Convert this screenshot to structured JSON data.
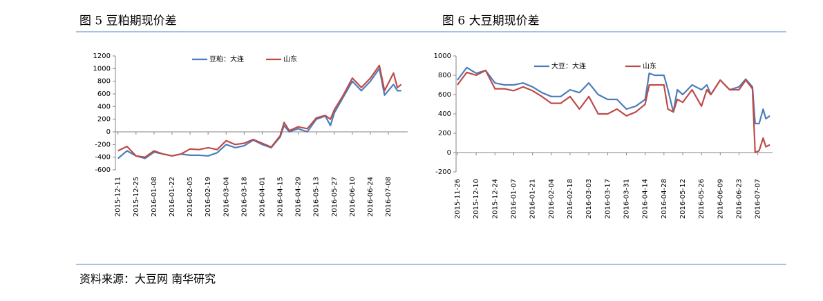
{
  "header": {
    "left": "图 5  豆粕期现价差",
    "right": "图 6  大豆期现价差"
  },
  "source": "资料来源：大豆网  南华研究",
  "chart_data": [
    {
      "type": "line",
      "x": [
        "2015-12-11",
        "2015-12-18",
        "2015-12-25",
        "2016-01-01",
        "2016-01-08",
        "2016-01-15",
        "2016-01-22",
        "2016-01-29",
        "2016-02-05",
        "2016-02-12",
        "2016-02-19",
        "2016-02-26",
        "2016-03-04",
        "2016-03-11",
        "2016-03-18",
        "2016-03-25",
        "2016-04-01",
        "2016-04-08",
        "2016-04-15",
        "2016-04-18",
        "2016-04-22",
        "2016-04-29",
        "2016-05-06",
        "2016-05-13",
        "2016-05-20",
        "2016-05-24",
        "2016-05-27",
        "2016-06-03",
        "2016-06-10",
        "2016-06-17",
        "2016-06-24",
        "2016-07-01",
        "2016-07-05",
        "2016-07-12",
        "2016-07-15",
        "2016-07-18"
      ],
      "series": [
        {
          "name": "豆粕：大连",
          "color": "#4a7ebb",
          "values": [
            -420,
            -300,
            -380,
            -420,
            -320,
            -350,
            -380,
            -350,
            -370,
            -370,
            -380,
            -330,
            -200,
            -250,
            -220,
            -130,
            -200,
            -250,
            -80,
            100,
            0,
            50,
            0,
            200,
            250,
            100,
            300,
            550,
            800,
            650,
            800,
            1000,
            580,
            750,
            650,
            650
          ]
        },
        {
          "name": "山东",
          "color": "#be4b48",
          "values": [
            -300,
            -230,
            -380,
            -400,
            -300,
            -350,
            -380,
            -350,
            -270,
            -280,
            -250,
            -280,
            -140,
            -200,
            -180,
            -120,
            -180,
            -240,
            -60,
            150,
            20,
            80,
            50,
            220,
            260,
            200,
            350,
            580,
            850,
            700,
            850,
            1050,
            650,
            930,
            700,
            750
          ]
        }
      ],
      "xlim": [
        "2015-12-09",
        "2016-07-23"
      ],
      "xticks": [
        "2015-12-11",
        "2015-12-25",
        "2016-01-08",
        "2016-01-22",
        "2016-02-05",
        "2016-02-19",
        "2016-03-04",
        "2016-03-18",
        "2016-04-01",
        "2016-04-15",
        "2016-04-29",
        "2016-05-13",
        "2016-05-27",
        "2016-06-10",
        "2016-06-24",
        "2016-07-08"
      ],
      "ylim": [
        -600,
        1200
      ],
      "yticks": [
        -600,
        -400,
        -200,
        0,
        200,
        400,
        600,
        800,
        1000,
        1200
      ],
      "legend": "top"
    },
    {
      "type": "line",
      "x": [
        "2015-11-26",
        "2015-12-03",
        "2015-12-10",
        "2015-12-17",
        "2015-12-24",
        "2015-12-31",
        "2016-01-07",
        "2016-01-14",
        "2016-01-21",
        "2016-01-28",
        "2016-02-04",
        "2016-02-11",
        "2016-02-18",
        "2016-02-25",
        "2016-03-03",
        "2016-03-10",
        "2016-03-17",
        "2016-03-24",
        "2016-03-31",
        "2016-04-07",
        "2016-04-14",
        "2016-04-17",
        "2016-04-21",
        "2016-04-28",
        "2016-05-01",
        "2016-05-05",
        "2016-05-08",
        "2016-05-12",
        "2016-05-19",
        "2016-05-26",
        "2016-05-30",
        "2016-06-02",
        "2016-06-09",
        "2016-06-16",
        "2016-06-23",
        "2016-06-28",
        "2016-07-03",
        "2016-07-05",
        "2016-07-08",
        "2016-07-11",
        "2016-07-13",
        "2016-07-16"
      ],
      "series": [
        {
          "name": "大豆：大连",
          "color": "#4a7ebb",
          "values": [
            750,
            880,
            820,
            850,
            720,
            700,
            700,
            720,
            680,
            620,
            580,
            580,
            650,
            620,
            720,
            600,
            550,
            550,
            450,
            480,
            550,
            820,
            800,
            800,
            650,
            420,
            650,
            600,
            700,
            650,
            700,
            600,
            750,
            650,
            680,
            760,
            680,
            300,
            300,
            450,
            350,
            380
          ]
        },
        {
          "name": "山东",
          "color": "#be4b48",
          "values": [
            700,
            830,
            800,
            850,
            660,
            660,
            640,
            680,
            640,
            580,
            510,
            510,
            580,
            450,
            580,
            400,
            400,
            450,
            380,
            420,
            500,
            700,
            700,
            700,
            450,
            420,
            550,
            520,
            650,
            480,
            650,
            600,
            750,
            650,
            650,
            750,
            660,
            0,
            20,
            150,
            60,
            80
          ]
        }
      ],
      "xlim": [
        "2015-11-25",
        "2016-07-18"
      ],
      "xticks": [
        "2015-11-26",
        "2015-12-10",
        "2015-12-24",
        "2016-01-07",
        "2016-01-21",
        "2016-02-04",
        "2016-02-18",
        "2016-03-03",
        "2016-03-17",
        "2016-03-31",
        "2016-04-14",
        "2016-04-28",
        "2016-05-12",
        "2016-05-26",
        "2016-06-09",
        "2016-06-23",
        "2016-07-07"
      ],
      "ylim": [
        -200,
        1000
      ],
      "yticks": [
        -200,
        0,
        200,
        400,
        600,
        800,
        1000
      ],
      "legend": "top"
    }
  ]
}
